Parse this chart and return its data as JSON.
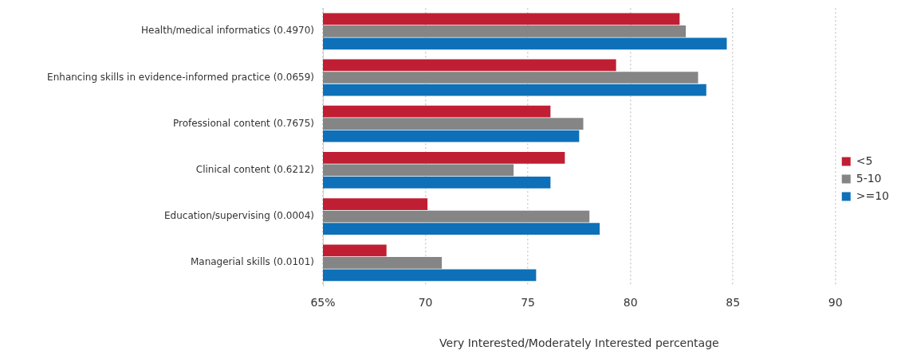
{
  "chart_data": {
    "type": "bar",
    "orientation": "horizontal",
    "xlabel": "Very Interested/Moderately Interested percentage",
    "categories": [
      "Health/medical informatics (0.4970)",
      "Enhancing skills in evidence-informed practice (0.0659)",
      "Professional content (0.7675)",
      "Clinical content (0.6212)",
      "Education/supervising (0.0004)",
      "Managerial skills (0.0101)"
    ],
    "series": [
      {
        "name": "<5",
        "color": "#c01f33",
        "values": [
          82.4,
          79.3,
          76.1,
          76.8,
          70.1,
          68.1
        ]
      },
      {
        "name": "5-10",
        "color": "#858585",
        "values": [
          82.7,
          83.3,
          77.7,
          74.3,
          78.0,
          70.8
        ]
      },
      {
        "name": ">=10",
        "color": "#0e70b8",
        "values": [
          84.7,
          83.7,
          77.5,
          76.1,
          78.5,
          75.4
        ]
      }
    ],
    "xlim": [
      65,
      90
    ],
    "xticks": [
      {
        "value": 65,
        "label": "65%"
      },
      70,
      75,
      80,
      85,
      90
    ],
    "grid": "x",
    "legend": "right"
  }
}
